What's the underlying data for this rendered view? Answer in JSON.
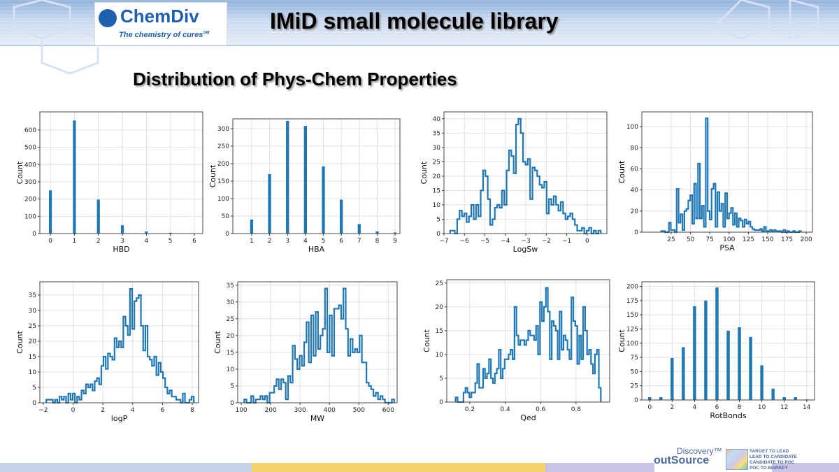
{
  "header": {
    "title": "IMiD small molecule library",
    "logo_name": "ChemDiv",
    "logo_tagline": "The chemistry of cures",
    "logo_sm": "SM"
  },
  "subtitle": "Distribution of Phys-Chem Properties",
  "footer": {
    "brand_top": "Discovery",
    "brand": "outSource",
    "tm": "™",
    "lines": [
      "TARGET TO LEAD",
      "LEAD TO CANDIDATE",
      "CANDIDATE TO POC",
      "POC TO MARKET"
    ]
  },
  "colors": {
    "series": "#1f77b4",
    "grid": "#e0e0e0"
  },
  "chart_data": [
    {
      "type": "bar",
      "xlabel": "HBD",
      "ylabel": "Count",
      "categories": [
        0,
        1,
        2,
        3,
        4,
        5,
        6
      ],
      "values": [
        250,
        655,
        197,
        48,
        12,
        5,
        2
      ],
      "xlim": [
        -0.44,
        6.35
      ],
      "ylim": [
        0,
        705
      ],
      "xticks": [
        0,
        1,
        2,
        3,
        4,
        5,
        6
      ],
      "yticks": [
        0,
        100,
        200,
        300,
        400,
        500,
        600
      ],
      "grid": true
    },
    {
      "type": "bar",
      "xlabel": "HBA",
      "ylabel": "Count",
      "categories": [
        1,
        2,
        3,
        4,
        5,
        6,
        7,
        8,
        9
      ],
      "values": [
        40,
        170,
        322,
        308,
        192,
        97,
        27,
        6,
        3
      ],
      "xlim": [
        -0.05,
        9.27
      ],
      "ylim": [
        0,
        328
      ],
      "xticks": [
        1,
        2,
        3,
        4,
        5,
        6,
        7,
        8,
        9
      ],
      "yticks": [
        0,
        50,
        100,
        150,
        200,
        250,
        300
      ],
      "grid": true
    },
    {
      "type": "histogram-step",
      "xlabel": "LogSw",
      "ylabel": "Count",
      "range": [
        -6.7,
        0.66
      ],
      "counts": [
        1,
        1,
        0,
        5,
        8,
        6,
        7,
        4,
        6,
        10,
        5,
        10,
        6,
        15,
        22,
        20,
        12,
        3,
        5,
        9,
        10,
        9,
        15,
        10,
        22,
        29,
        27,
        21,
        38,
        40,
        35,
        25,
        24,
        26,
        12,
        23,
        22,
        20,
        17,
        16,
        18,
        7,
        12,
        10,
        13,
        10,
        8,
        11,
        7,
        5,
        6,
        7,
        5,
        3,
        1,
        1,
        2,
        0,
        1,
        2,
        0,
        1,
        0,
        1
      ],
      "xlim": [
        -7,
        0.96
      ],
      "ylim": [
        0,
        42.4
      ],
      "xticks": [
        -7,
        -6,
        -5,
        -4,
        -3,
        -2,
        -1,
        0
      ],
      "yticks": [
        0,
        5,
        10,
        15,
        20,
        25,
        30,
        35,
        40
      ],
      "grid": true
    },
    {
      "type": "histogram-step",
      "xlabel": "PSA",
      "ylabel": "Count",
      "range": [
        12,
        193
      ],
      "counts": [
        1,
        1,
        0,
        0,
        9,
        2,
        2,
        0,
        41,
        9,
        17,
        2,
        20,
        22,
        30,
        35,
        8,
        46,
        13,
        65,
        13,
        25,
        5,
        108,
        20,
        12,
        41,
        46,
        5,
        38,
        20,
        27,
        5,
        37,
        13,
        18,
        23,
        7,
        18,
        5,
        13,
        11,
        5,
        12,
        8,
        10,
        5,
        3,
        2,
        2,
        2,
        3,
        1,
        5,
        1,
        1,
        2,
        1,
        2,
        1,
        1,
        1,
        0,
        2,
        0,
        1,
        0,
        0,
        1,
        0,
        0,
        1
      ],
      "xlim": [
        -13,
        208
      ],
      "ylim": [
        0,
        114
      ],
      "xticks": [
        25,
        50,
        75,
        100,
        125,
        150,
        175,
        200
      ],
      "yticks": [
        0,
        20,
        40,
        60,
        80,
        100
      ],
      "grid": true
    },
    {
      "type": "histogram-step",
      "xlabel": "logP",
      "ylabel": "Count",
      "range": [
        -1.8,
        8.1
      ],
      "counts": [
        1,
        1,
        1,
        0,
        1,
        0,
        2,
        1,
        2,
        0,
        3,
        1,
        3,
        0,
        2,
        1,
        4,
        3,
        6,
        5,
        6,
        4,
        7,
        8,
        6,
        12,
        15,
        11,
        16,
        15,
        14,
        21,
        18,
        20,
        18,
        28,
        25,
        22,
        37,
        24,
        33,
        34,
        35,
        25,
        17,
        25,
        15,
        14,
        12,
        15,
        9,
        13,
        10,
        8,
        5,
        3,
        4,
        2,
        2,
        1,
        1,
        0,
        3,
        0,
        0,
        1,
        2
      ],
      "xlim": [
        -2.23,
        8.42
      ],
      "ylim": [
        0,
        39.3
      ],
      "xticks": [
        -2,
        0,
        2,
        4,
        6,
        8
      ],
      "yticks": [
        0,
        5,
        10,
        15,
        20,
        25,
        30,
        35
      ],
      "grid": true
    },
    {
      "type": "histogram-step",
      "xlabel": "MW",
      "ylabel": "Count",
      "range": [
        110,
        620
      ],
      "counts": [
        1,
        0,
        0,
        2,
        0,
        1,
        1,
        2,
        1,
        2,
        0,
        3,
        3,
        5,
        7,
        4,
        7,
        6,
        1,
        8,
        6,
        17,
        13,
        10,
        14,
        11,
        18,
        24,
        12,
        26,
        14,
        27,
        16,
        20,
        22,
        34,
        15,
        26,
        14,
        28,
        28,
        29,
        25,
        34,
        22,
        14,
        19,
        15,
        16,
        15,
        20,
        12,
        12,
        6,
        5,
        4,
        2,
        3,
        1,
        2,
        1,
        0,
        0,
        0,
        1
      ],
      "xlim": [
        88,
        630
      ],
      "ylim": [
        0,
        36
      ],
      "xticks": [
        100,
        200,
        300,
        400,
        500,
        600
      ],
      "yticks": [
        0,
        5,
        10,
        15,
        20,
        25,
        30,
        35
      ],
      "grid": true
    },
    {
      "type": "histogram-step",
      "xlabel": "Qed",
      "ylabel": "Count",
      "range": [
        0.12,
        0.94
      ],
      "counts": [
        1,
        0,
        0,
        0,
        2,
        3,
        2,
        1,
        2,
        2,
        4,
        8,
        3,
        3,
        7,
        5,
        6,
        9,
        5,
        4,
        6,
        7,
        11,
        5,
        7,
        9,
        9,
        10,
        11,
        9,
        20,
        14,
        12,
        13,
        13,
        12,
        13,
        15,
        14,
        14,
        13,
        16,
        10,
        21,
        17,
        20,
        24,
        19,
        9,
        17,
        16,
        15,
        9,
        19,
        11,
        14,
        13,
        11,
        9,
        22,
        17,
        16,
        8,
        14,
        9,
        20,
        15,
        10,
        11,
        8,
        6,
        10,
        11,
        3
      ],
      "xlim": [
        0.07,
        0.99
      ],
      "ylim": [
        0,
        25.7
      ],
      "xticks": [
        0.2,
        0.4,
        0.6,
        0.8
      ],
      "yticks": [
        0,
        5,
        10,
        15,
        20,
        25
      ],
      "grid": true
    },
    {
      "type": "bar",
      "xlabel": "RotBonds",
      "ylabel": "Count",
      "categories": [
        0,
        1,
        2,
        3,
        4,
        5,
        6,
        7,
        8,
        9,
        10,
        11,
        12,
        13,
        14
      ],
      "values": [
        5,
        5,
        74,
        93,
        165,
        175,
        198,
        122,
        128,
        111,
        61,
        20,
        5,
        5,
        1
      ],
      "xlim": [
        -0.7,
        14.7
      ],
      "ylim": [
        0,
        208
      ],
      "xticks": [
        0,
        2,
        4,
        6,
        8,
        10,
        12,
        14
      ],
      "yticks": [
        0,
        25,
        50,
        75,
        100,
        125,
        150,
        175,
        200
      ],
      "grid": true
    }
  ]
}
